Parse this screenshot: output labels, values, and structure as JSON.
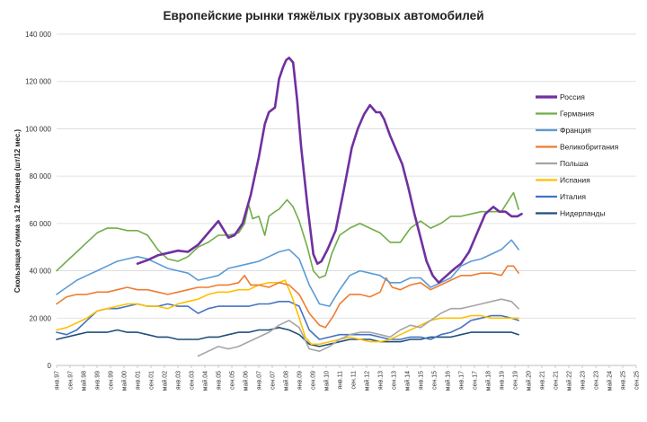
{
  "chart_data": {
    "type": "line",
    "title": "Европейские рынки тяжёлых грузовых автомобилей",
    "xlabel": "",
    "ylabel": "Скользящая сумма за 12 месяцев (шт/12 мес.)",
    "ylim": [
      0,
      140000
    ],
    "yticks": [
      "0",
      "20 000",
      "40 000",
      "60 000",
      "80 000",
      "100 000",
      "120 000",
      "140 000"
    ],
    "ytick_values": [
      0,
      20000,
      40000,
      60000,
      80000,
      100000,
      120000,
      140000
    ],
    "x_ticks": [
      "янв.97",
      "сен.97",
      "май.98",
      "янв.99",
      "сен.99",
      "май.00",
      "янв.01",
      "сен.01",
      "май.02",
      "янв.03",
      "сен.03",
      "май.04",
      "янв.05",
      "сен.05",
      "май.06",
      "янв.07",
      "сен.07",
      "май.08",
      "янв.09",
      "сен.09",
      "май.10",
      "янв.11",
      "сен.11",
      "май.12",
      "янв.13",
      "сен.13",
      "май.14",
      "янв.15",
      "сен.15",
      "май.16",
      "янв.17",
      "сен.17",
      "май.18",
      "янв.19",
      "сен.19",
      "май.20",
      "янв.21",
      "сен.21",
      "май.22",
      "янв.23",
      "сен.23",
      "май.24",
      "янв.25",
      "сен.25"
    ],
    "x_unit": "years",
    "x_range": [
      1997.0,
      2025.667
    ],
    "grid": true,
    "legend_position": "right",
    "series": [
      {
        "name": "Россия",
        "color": "#7030a0",
        "width": 2.6,
        "x": [
          2001.0,
          2001.5,
          2002.0,
          2002.5,
          2003.0,
          2003.5,
          2004.0,
          2004.4,
          2004.8,
          2005.0,
          2005.5,
          2005.8,
          2006.2,
          2006.6,
          2007.0,
          2007.3,
          2007.5,
          2007.8,
          2008.0,
          2008.2,
          2008.35,
          2008.5,
          2008.7,
          2008.9,
          2009.1,
          2009.4,
          2009.7,
          2009.9,
          2010.1,
          2010.4,
          2010.8,
          2011.2,
          2011.6,
          2011.9,
          2012.2,
          2012.5,
          2012.8,
          2013.0,
          2013.2,
          2013.5,
          2013.8,
          2014.1,
          2014.4,
          2014.7,
          2015.0,
          2015.3,
          2015.6,
          2015.9,
          2016.3,
          2016.7,
          2017.0,
          2017.4,
          2017.8,
          2018.2,
          2018.6,
          2018.9,
          2019.2,
          2019.5,
          2019.8,
          2020.0
        ],
        "y": [
          43000,
          44500,
          46500,
          47500,
          48500,
          48000,
          51000,
          55000,
          59000,
          61000,
          54000,
          55000,
          60000,
          72000,
          88000,
          102000,
          107000,
          109000,
          121000,
          126000,
          129000,
          130000,
          128000,
          112000,
          92000,
          68000,
          47000,
          43000,
          44000,
          49000,
          57000,
          74000,
          92000,
          100000,
          106000,
          110000,
          107000,
          107000,
          104000,
          97000,
          91000,
          85000,
          75000,
          64000,
          54000,
          44000,
          38000,
          35000,
          38000,
          41000,
          43000,
          48000,
          56000,
          64000,
          67000,
          65000,
          65000,
          63000,
          63000,
          64000
        ]
      },
      {
        "name": "Германия",
        "color": "#70ad47",
        "width": 1.6,
        "x": [
          1997.0,
          1997.5,
          1998.0,
          1998.5,
          1999.0,
          1999.5,
          2000.0,
          2000.5,
          2001.0,
          2001.5,
          2002.0,
          2002.5,
          2003.0,
          2003.5,
          2004.0,
          2004.5,
          2005.0,
          2005.5,
          2006.0,
          2006.3,
          2006.5,
          2006.7,
          2007.0,
          2007.3,
          2007.5,
          2007.8,
          2008.0,
          2008.4,
          2008.7,
          2009.0,
          2009.4,
          2009.7,
          2010.0,
          2010.3,
          2010.6,
          2011.0,
          2011.5,
          2012.0,
          2012.5,
          2013.0,
          2013.5,
          2014.0,
          2014.5,
          2015.0,
          2015.5,
          2016.0,
          2016.5,
          2017.0,
          2017.5,
          2018.0,
          2018.5,
          2019.0,
          2019.3,
          2019.6,
          2019.85
        ],
        "y": [
          40000,
          44000,
          48000,
          52000,
          56000,
          58000,
          58000,
          57000,
          57000,
          55000,
          49000,
          45000,
          44000,
          46000,
          50000,
          52000,
          55000,
          55000,
          56000,
          60000,
          68000,
          62000,
          63000,
          55000,
          63000,
          65000,
          66000,
          70000,
          67000,
          61000,
          50000,
          40000,
          37000,
          38000,
          47000,
          55000,
          58000,
          60000,
          58000,
          56000,
          52000,
          52000,
          58000,
          61000,
          58000,
          60000,
          63000,
          63000,
          64000,
          65000,
          65000,
          65000,
          69000,
          73000,
          66000
        ]
      },
      {
        "name": "Франция",
        "color": "#5b9bd5",
        "width": 1.6,
        "x": [
          1997.0,
          1997.5,
          1998.0,
          1998.5,
          1999.0,
          1999.5,
          2000.0,
          2000.5,
          2001.0,
          2001.5,
          2002.0,
          2002.5,
          2003.0,
          2003.5,
          2004.0,
          2004.5,
          2005.0,
          2005.5,
          2006.0,
          2006.5,
          2007.0,
          2007.5,
          2008.0,
          2008.5,
          2009.0,
          2009.5,
          2010.0,
          2010.5,
          2011.0,
          2011.5,
          2012.0,
          2012.5,
          2013.0,
          2013.5,
          2014.0,
          2014.5,
          2015.0,
          2015.5,
          2016.0,
          2016.5,
          2017.0,
          2017.5,
          2018.0,
          2018.5,
          2019.0,
          2019.5,
          2019.85
        ],
        "y": [
          30000,
          33000,
          36000,
          38000,
          40000,
          42000,
          44000,
          45000,
          46000,
          45000,
          43000,
          41000,
          40000,
          39000,
          36000,
          37000,
          38000,
          41000,
          42000,
          43000,
          44000,
          46000,
          48000,
          49000,
          45000,
          34000,
          26000,
          25000,
          32000,
          38000,
          40000,
          39000,
          38000,
          35000,
          35000,
          37000,
          37000,
          33000,
          35000,
          37000,
          42000,
          44000,
          45000,
          47000,
          49000,
          53000,
          49000
        ]
      },
      {
        "name": "Великобритания",
        "color": "#ed7d31",
        "width": 1.6,
        "x": [
          1997.0,
          1997.5,
          1998.0,
          1998.5,
          1999.0,
          1999.5,
          2000.0,
          2000.5,
          2001.0,
          2001.5,
          2002.0,
          2002.5,
          2003.0,
          2003.5,
          2004.0,
          2004.5,
          2005.0,
          2005.5,
          2006.0,
          2006.3,
          2006.6,
          2007.0,
          2007.5,
          2008.0,
          2008.5,
          2009.0,
          2009.5,
          2010.0,
          2010.3,
          2010.7,
          2011.0,
          2011.5,
          2012.0,
          2012.5,
          2013.0,
          2013.3,
          2013.6,
          2014.0,
          2014.5,
          2015.0,
          2015.5,
          2016.0,
          2016.5,
          2017.0,
          2017.5,
          2018.0,
          2018.5,
          2019.0,
          2019.3,
          2019.6,
          2019.85
        ],
        "y": [
          26000,
          29000,
          30000,
          30000,
          31000,
          31000,
          32000,
          33000,
          32000,
          32000,
          31000,
          30000,
          31000,
          32000,
          33000,
          33000,
          34000,
          34000,
          35000,
          38000,
          34000,
          34000,
          33000,
          35000,
          34000,
          30000,
          22000,
          17000,
          16000,
          21000,
          26000,
          30000,
          30000,
          29000,
          31000,
          37000,
          33000,
          32000,
          34000,
          35000,
          32000,
          34000,
          36000,
          38000,
          38000,
          39000,
          39000,
          38000,
          42000,
          42000,
          39000
        ]
      },
      {
        "name": "Польша",
        "color": "#a5a5a5",
        "width": 1.6,
        "x": [
          2004.0,
          2004.5,
          2005.0,
          2005.5,
          2006.0,
          2006.5,
          2007.0,
          2007.5,
          2008.0,
          2008.5,
          2009.0,
          2009.5,
          2010.0,
          2010.5,
          2011.0,
          2011.5,
          2012.0,
          2012.5,
          2013.0,
          2013.5,
          2014.0,
          2014.5,
          2015.0,
          2015.5,
          2016.0,
          2016.5,
          2017.0,
          2017.5,
          2018.0,
          2018.5,
          2019.0,
          2019.5,
          2019.85
        ],
        "y": [
          4000,
          6000,
          8000,
          7000,
          8000,
          10000,
          12000,
          14000,
          17000,
          19000,
          16000,
          7000,
          6000,
          8000,
          11000,
          13000,
          14000,
          14000,
          13000,
          12000,
          15000,
          17000,
          16000,
          19000,
          22000,
          24000,
          24000,
          25000,
          26000,
          27000,
          28000,
          27000,
          24000
        ]
      },
      {
        "name": "Испания",
        "color": "#ffc000",
        "width": 1.6,
        "x": [
          1997.0,
          1997.5,
          1998.0,
          1998.5,
          1999.0,
          1999.5,
          2000.0,
          2000.5,
          2001.0,
          2001.5,
          2002.0,
          2002.5,
          2003.0,
          2003.5,
          2004.0,
          2004.5,
          2005.0,
          2005.5,
          2006.0,
          2006.5,
          2007.0,
          2007.5,
          2008.0,
          2008.3,
          2008.6,
          2009.0,
          2009.3,
          2009.6,
          2010.0,
          2010.5,
          2011.0,
          2011.5,
          2012.0,
          2012.5,
          2013.0,
          2013.5,
          2014.0,
          2014.5,
          2015.0,
          2015.5,
          2016.0,
          2016.5,
          2017.0,
          2017.5,
          2018.0,
          2018.5,
          2019.0,
          2019.5,
          2019.85
        ],
        "y": [
          15000,
          16000,
          18000,
          20000,
          23000,
          24000,
          25000,
          26000,
          26000,
          25000,
          25000,
          24000,
          26000,
          27000,
          28000,
          30000,
          31000,
          31000,
          32000,
          32000,
          34000,
          35000,
          35000,
          36000,
          30000,
          20000,
          12000,
          9000,
          9000,
          10000,
          11000,
          12000,
          11000,
          10000,
          10000,
          11000,
          13000,
          15000,
          17000,
          19000,
          20000,
          20000,
          20000,
          21000,
          21000,
          20000,
          20000,
          20000,
          20000
        ]
      },
      {
        "name": "Италия",
        "color": "#4472c4",
        "width": 1.6,
        "x": [
          1997.0,
          1997.5,
          1998.0,
          1998.5,
          1999.0,
          1999.5,
          2000.0,
          2000.5,
          2001.0,
          2001.5,
          2002.0,
          2002.5,
          2003.0,
          2003.5,
          2004.0,
          2004.5,
          2005.0,
          2005.5,
          2006.0,
          2006.5,
          2007.0,
          2007.5,
          2008.0,
          2008.5,
          2009.0,
          2009.5,
          2010.0,
          2010.5,
          2011.0,
          2011.5,
          2012.0,
          2012.5,
          2013.0,
          2013.5,
          2014.0,
          2014.5,
          2015.0,
          2015.5,
          2016.0,
          2016.5,
          2017.0,
          2017.5,
          2018.0,
          2018.5,
          2019.0,
          2019.5,
          2019.85
        ],
        "y": [
          14000,
          13000,
          15000,
          19000,
          23000,
          24000,
          24000,
          25000,
          26000,
          25000,
          25000,
          26000,
          25000,
          25000,
          22000,
          24000,
          25000,
          25000,
          25000,
          25000,
          26000,
          26000,
          27000,
          27000,
          25000,
          15000,
          11000,
          12000,
          13000,
          13000,
          13000,
          13000,
          12000,
          11000,
          11000,
          12000,
          12000,
          11000,
          13000,
          14000,
          16000,
          19000,
          20000,
          21000,
          21000,
          20000,
          19000
        ]
      },
      {
        "name": "Нидерланды",
        "color": "#1f4e79",
        "width": 1.6,
        "x": [
          1997.0,
          1997.5,
          1998.0,
          1998.5,
          1999.0,
          1999.5,
          2000.0,
          2000.5,
          2001.0,
          2001.5,
          2002.0,
          2002.5,
          2003.0,
          2003.5,
          2004.0,
          2004.5,
          2005.0,
          2005.5,
          2006.0,
          2006.5,
          2007.0,
          2007.5,
          2008.0,
          2008.5,
          2009.0,
          2009.5,
          2010.0,
          2010.5,
          2011.0,
          2011.5,
          2012.0,
          2012.5,
          2013.0,
          2013.5,
          2014.0,
          2014.5,
          2015.0,
          2015.5,
          2016.0,
          2016.5,
          2017.0,
          2017.5,
          2018.0,
          2018.5,
          2019.0,
          2019.5,
          2019.85
        ],
        "y": [
          11000,
          12000,
          13000,
          14000,
          14000,
          14000,
          15000,
          14000,
          14000,
          13000,
          12000,
          12000,
          11000,
          11000,
          11000,
          12000,
          12000,
          13000,
          14000,
          14000,
          15000,
          15000,
          16000,
          15000,
          13000,
          9000,
          8000,
          9000,
          10000,
          11000,
          11000,
          11000,
          10000,
          10000,
          10000,
          11000,
          11000,
          12000,
          12000,
          12000,
          13000,
          14000,
          14000,
          14000,
          14000,
          14000,
          13000
        ]
      }
    ]
  }
}
